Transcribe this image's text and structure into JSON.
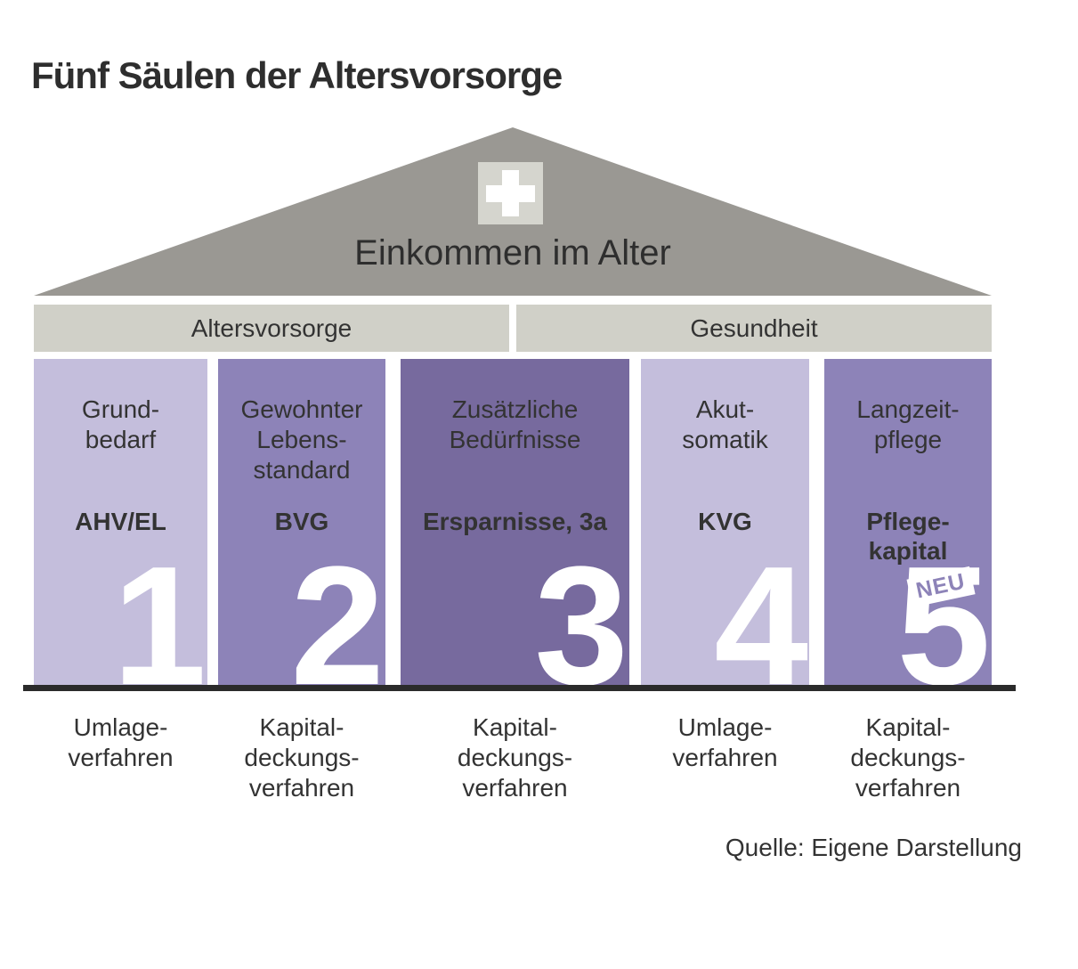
{
  "title": "Fünf Säulen der Altersvorsorge",
  "roof": {
    "label": "Einkommen im Alter",
    "icon": "swiss-cross-icon"
  },
  "header_beams": [
    {
      "label": "Altersvorsorge"
    },
    {
      "label": "Gesundheit"
    }
  ],
  "pillars": [
    {
      "number": "1",
      "need": "Grund-\nbedarf",
      "instrument": "AHV/EL",
      "financing": "Umlage-\nverfahren",
      "shade": "light"
    },
    {
      "number": "2",
      "need": "Gewohnter\nLebens-\nstandard",
      "instrument": "BVG",
      "financing": "Kapital-\ndeckungs-\nverfahren",
      "shade": "medium"
    },
    {
      "number": "3",
      "need": "Zusätzliche\nBedürfnisse",
      "instrument": "Ersparnisse, 3a",
      "financing": "Kapital-\ndeckungs-\nverfahren",
      "shade": "dark"
    },
    {
      "number": "4",
      "need": "Akut-\nsomatik",
      "instrument": "KVG",
      "financing": "Umlage-\nverfahren",
      "shade": "light"
    },
    {
      "number": "5",
      "need": "Langzeit-\npflege",
      "instrument": "Pflege-\nkapital",
      "financing": "Kapital-\ndeckungs-\nverfahren",
      "shade": "medium",
      "badge": "NEU"
    }
  ],
  "source": "Quelle: Eigene Darstellung",
  "colors": {
    "pillar_light": "#c4bedc",
    "pillar_medium": "#8d83b8",
    "pillar_dark": "#776a9e",
    "roof": "#9a9893",
    "beam": "#d0d0c8",
    "cross_box": "#d5d5ce",
    "text": "#2f2f2f",
    "number_text": "#ffffff",
    "badge_bg": "#ffffff",
    "badge_text": "#8d83b8",
    "baseline": "#2b2b2b"
  }
}
